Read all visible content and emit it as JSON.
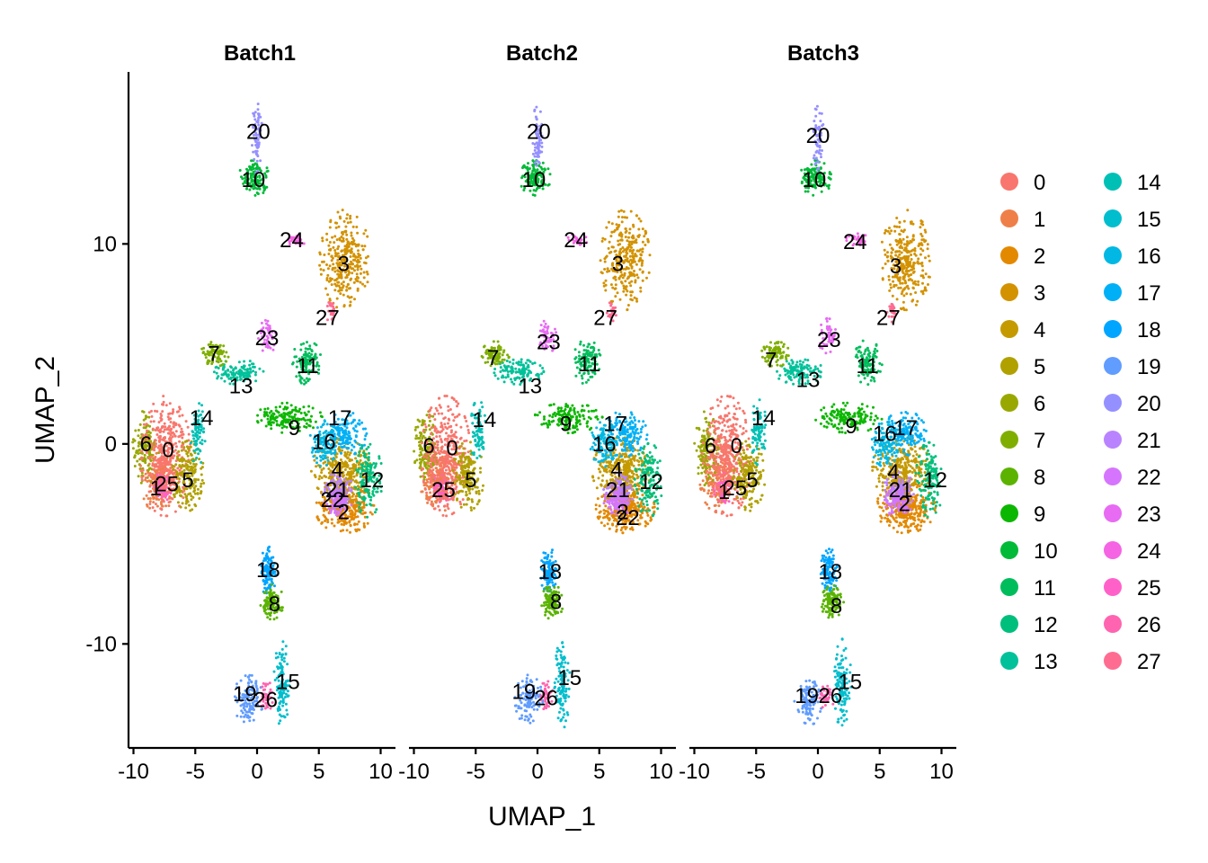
{
  "chart_data": {
    "type": "scatter",
    "facets": [
      "Batch1",
      "Batch2",
      "Batch3"
    ],
    "xlabel": "UMAP_1",
    "ylabel": "UMAP_2",
    "xlim": [
      -10.4,
      11.2
    ],
    "ylim": [
      -15.2,
      18.6
    ],
    "xticks": [
      -10,
      -5,
      0,
      5,
      10
    ],
    "xtick_labels": [
      "-10",
      "-5",
      "0",
      "5",
      "10"
    ],
    "yticks": [
      -10,
      0,
      10
    ],
    "ytick_labels": [
      "-10",
      "0",
      "10"
    ],
    "legend_position": "right",
    "legend_columns": 2,
    "clusters": [
      {
        "name": "0",
        "color": "#F8766D"
      },
      {
        "name": "1",
        "color": "#EF7F49"
      },
      {
        "name": "2",
        "color": "#E38900"
      },
      {
        "name": "3",
        "color": "#D39200"
      },
      {
        "name": "4",
        "color": "#C49A00"
      },
      {
        "name": "5",
        "color": "#B0A100"
      },
      {
        "name": "6",
        "color": "#99A800"
      },
      {
        "name": "7",
        "color": "#7FAE00"
      },
      {
        "name": "8",
        "color": "#5BB300"
      },
      {
        "name": "9",
        "color": "#0CB702"
      },
      {
        "name": "10",
        "color": "#00BA38"
      },
      {
        "name": "11",
        "color": "#00BD5C"
      },
      {
        "name": "12",
        "color": "#00BF7D"
      },
      {
        "name": "13",
        "color": "#00C19A"
      },
      {
        "name": "14",
        "color": "#00C0B5"
      },
      {
        "name": "15",
        "color": "#00BECD"
      },
      {
        "name": "16",
        "color": "#00B8E3"
      },
      {
        "name": "17",
        "color": "#00B0F6"
      },
      {
        "name": "18",
        "color": "#00A5FF"
      },
      {
        "name": "19",
        "color": "#619CFF"
      },
      {
        "name": "20",
        "color": "#9590FF"
      },
      {
        "name": "21",
        "color": "#B983FF"
      },
      {
        "name": "22",
        "color": "#D575FE"
      },
      {
        "name": "23",
        "color": "#E76BF3"
      },
      {
        "name": "24",
        "color": "#F564E3"
      },
      {
        "name": "25",
        "color": "#FF61C9"
      },
      {
        "name": "26",
        "color": "#FF64B0"
      },
      {
        "name": "27",
        "color": "#FF6C91"
      }
    ],
    "draw_order": [
      "2",
      "4",
      "3",
      "17",
      "16",
      "12",
      "21",
      "22",
      "1",
      "25",
      "6",
      "0",
      "5",
      "14",
      "13",
      "9",
      "7",
      "11",
      "23",
      "24",
      "27",
      "10",
      "20",
      "18",
      "8",
      "15",
      "19",
      "26"
    ],
    "cluster_shapes": {
      "0": [
        {
          "cx": -7.4,
          "cy": -0.6,
          "rx": 1.6,
          "ry": 2.4,
          "n": 380
        }
      ],
      "1": [
        {
          "cx": -8.0,
          "cy": -1.8,
          "rx": 1.2,
          "ry": 1.3,
          "n": 200
        }
      ],
      "25": [
        {
          "cx": -7.6,
          "cy": -2.2,
          "rx": 0.7,
          "ry": 0.6,
          "n": 60
        }
      ],
      "6": [
        {
          "cx": -9.0,
          "cy": -0.2,
          "rx": 0.8,
          "ry": 1.5,
          "n": 140
        }
      ],
      "5": [
        {
          "cx": -5.6,
          "cy": -1.6,
          "rx": 1.0,
          "ry": 1.4,
          "n": 180
        }
      ],
      "14": [
        {
          "cx": -4.8,
          "cy": 0.6,
          "rx": 0.5,
          "ry": 1.3,
          "n": 80
        }
      ],
      "7": [
        {
          "cx": -3.4,
          "cy": 4.5,
          "rx": 0.9,
          "ry": 0.5,
          "n": 90
        }
      ],
      "13": [
        {
          "cx": -1.5,
          "cy": 3.6,
          "rx": 1.6,
          "ry": 0.5,
          "n": 120
        }
      ],
      "9": [
        {
          "cx": 2.5,
          "cy": 1.3,
          "rx": 2.2,
          "ry": 0.6,
          "n": 150
        }
      ],
      "16": [
        {
          "cx": 5.4,
          "cy": 0.0,
          "rx": 0.9,
          "ry": 0.9,
          "n": 110
        }
      ],
      "17": [
        {
          "cx": 7.0,
          "cy": 0.5,
          "rx": 1.5,
          "ry": 0.9,
          "n": 160
        }
      ],
      "4": [
        {
          "cx": 6.8,
          "cy": -1.3,
          "rx": 1.9,
          "ry": 1.3,
          "n": 320
        }
      ],
      "21": [
        {
          "cx": 6.6,
          "cy": -2.3,
          "rx": 1.0,
          "ry": 0.7,
          "n": 90
        }
      ],
      "22": [
        {
          "cx": 6.5,
          "cy": -2.9,
          "rx": 0.9,
          "ry": 0.6,
          "n": 80
        }
      ],
      "2": [
        {
          "cx": 7.1,
          "cy": -3.2,
          "rx": 1.9,
          "ry": 1.0,
          "n": 300
        }
      ],
      "12": [
        {
          "cx": 9.0,
          "cy": -1.8,
          "rx": 0.9,
          "ry": 1.5,
          "n": 140
        }
      ],
      "3": [
        {
          "cx": 7.1,
          "cy": 9.2,
          "rx": 1.6,
          "ry": 2.0,
          "n": 300
        }
      ],
      "24": [
        {
          "cx": 3.2,
          "cy": 10.2,
          "rx": 0.7,
          "ry": 0.25,
          "n": 30
        }
      ],
      "27": [
        {
          "cx": 6.0,
          "cy": 6.6,
          "rx": 0.3,
          "ry": 0.4,
          "n": 25
        }
      ],
      "23": [
        {
          "cx": 0.8,
          "cy": 5.4,
          "rx": 0.6,
          "ry": 0.7,
          "n": 50
        }
      ],
      "11": [
        {
          "cx": 4.0,
          "cy": 4.1,
          "rx": 0.9,
          "ry": 0.9,
          "n": 110
        }
      ],
      "10": [
        {
          "cx": -0.2,
          "cy": 13.3,
          "rx": 1.0,
          "ry": 0.7,
          "n": 130
        }
      ],
      "20": [
        {
          "cx": 0.0,
          "cy": 15.3,
          "rx": 0.3,
          "ry": 1.4,
          "n": 70
        }
      ],
      "18": [
        {
          "cx": 0.9,
          "cy": -6.4,
          "rx": 0.5,
          "ry": 1.0,
          "n": 110
        }
      ],
      "8": [
        {
          "cx": 1.2,
          "cy": -7.9,
          "rx": 0.7,
          "ry": 0.7,
          "n": 110
        }
      ],
      "15": [
        {
          "cx": 2.0,
          "cy": -12.0,
          "rx": 0.5,
          "ry": 1.8,
          "n": 120
        }
      ],
      "19": [
        {
          "cx": -0.7,
          "cy": -12.8,
          "rx": 0.9,
          "ry": 1.0,
          "n": 110
        }
      ],
      "26": [
        {
          "cx": 0.7,
          "cy": -12.6,
          "rx": 0.5,
          "ry": 0.6,
          "n": 40
        }
      ]
    },
    "cluster_labels": [
      [
        {
          "text": "20",
          "x": 0.1,
          "y": 15.6
        },
        {
          "text": "10",
          "x": -0.3,
          "y": 13.2
        },
        {
          "text": "24",
          "x": 2.8,
          "y": 10.2
        },
        {
          "text": "3",
          "x": 7.0,
          "y": 9.0
        },
        {
          "text": "27",
          "x": 5.7,
          "y": 6.3
        },
        {
          "text": "23",
          "x": 0.8,
          "y": 5.3
        },
        {
          "text": "7",
          "x": -3.5,
          "y": 4.5
        },
        {
          "text": "11",
          "x": 4.1,
          "y": 3.9
        },
        {
          "text": "13",
          "x": -1.3,
          "y": 2.9
        },
        {
          "text": "14",
          "x": -4.5,
          "y": 1.3
        },
        {
          "text": "9",
          "x": 3.0,
          "y": 0.8
        },
        {
          "text": "17",
          "x": 6.7,
          "y": 1.3
        },
        {
          "text": "6",
          "x": -9.0,
          "y": 0.0
        },
        {
          "text": "0",
          "x": -7.2,
          "y": -0.3
        },
        {
          "text": "16",
          "x": 5.4,
          "y": 0.1
        },
        {
          "text": "4",
          "x": 6.5,
          "y": -1.3
        },
        {
          "text": "12",
          "x": 9.3,
          "y": -1.8
        },
        {
          "text": "5",
          "x": -5.6,
          "y": -1.8
        },
        {
          "text": "25",
          "x": -7.3,
          "y": -2.0
        },
        {
          "text": "1",
          "x": -8.2,
          "y": -2.2
        },
        {
          "text": "21",
          "x": 6.5,
          "y": -2.3
        },
        {
          "text": "22",
          "x": 6.1,
          "y": -2.8
        },
        {
          "text": "2",
          "x": 7.0,
          "y": -3.4
        },
        {
          "text": "18",
          "x": 0.9,
          "y": -6.3
        },
        {
          "text": "8",
          "x": 1.4,
          "y": -8.0
        },
        {
          "text": "15",
          "x": 2.5,
          "y": -11.9
        },
        {
          "text": "19",
          "x": -1.0,
          "y": -12.5
        },
        {
          "text": "26",
          "x": 0.7,
          "y": -12.8
        }
      ],
      [
        {
          "text": "20",
          "x": 0.1,
          "y": 15.6
        },
        {
          "text": "10",
          "x": -0.3,
          "y": 13.2
        },
        {
          "text": "24",
          "x": 3.1,
          "y": 10.2
        },
        {
          "text": "3",
          "x": 6.5,
          "y": 9.0
        },
        {
          "text": "27",
          "x": 5.5,
          "y": 6.3
        },
        {
          "text": "23",
          "x": 0.9,
          "y": 5.1
        },
        {
          "text": "7",
          "x": -3.6,
          "y": 4.3
        },
        {
          "text": "11",
          "x": 4.2,
          "y": 4.0
        },
        {
          "text": "13",
          "x": -0.6,
          "y": 2.9
        },
        {
          "text": "14",
          "x": -4.3,
          "y": 1.2
        },
        {
          "text": "9",
          "x": 2.3,
          "y": 1.0
        },
        {
          "text": "17",
          "x": 6.3,
          "y": 1.0
        },
        {
          "text": "6",
          "x": -8.8,
          "y": -0.1
        },
        {
          "text": "0",
          "x": -6.9,
          "y": -0.2
        },
        {
          "text": "16",
          "x": 5.4,
          "y": 0.0
        },
        {
          "text": "4",
          "x": 6.4,
          "y": -1.3
        },
        {
          "text": "12",
          "x": 9.2,
          "y": -1.9
        },
        {
          "text": "5",
          "x": -5.4,
          "y": -1.8
        },
        {
          "text": "25",
          "x": -7.6,
          "y": -2.3
        },
        {
          "text": "21",
          "x": 6.5,
          "y": -2.3
        },
        {
          "text": "2",
          "x": 6.9,
          "y": -3.4
        },
        {
          "text": "22",
          "x": 7.3,
          "y": -3.7
        },
        {
          "text": "18",
          "x": 1.0,
          "y": -6.4
        },
        {
          "text": "8",
          "x": 1.5,
          "y": -7.9
        },
        {
          "text": "15",
          "x": 2.6,
          "y": -11.7
        },
        {
          "text": "19",
          "x": -1.1,
          "y": -12.4
        },
        {
          "text": "26",
          "x": 0.7,
          "y": -12.7
        }
      ],
      [
        {
          "text": "20",
          "x": 0.0,
          "y": 15.4
        },
        {
          "text": "10",
          "x": -0.3,
          "y": 13.2
        },
        {
          "text": "24",
          "x": 3.0,
          "y": 10.1
        },
        {
          "text": "3",
          "x": 6.3,
          "y": 8.9
        },
        {
          "text": "27",
          "x": 5.7,
          "y": 6.3
        },
        {
          "text": "23",
          "x": 0.9,
          "y": 5.2
        },
        {
          "text": "7",
          "x": -3.8,
          "y": 4.2
        },
        {
          "text": "11",
          "x": 4.0,
          "y": 3.9
        },
        {
          "text": "13",
          "x": -0.8,
          "y": 3.2
        },
        {
          "text": "14",
          "x": -4.4,
          "y": 1.3
        },
        {
          "text": "9",
          "x": 2.7,
          "y": 0.9
        },
        {
          "text": "17",
          "x": 7.1,
          "y": 0.8
        },
        {
          "text": "16",
          "x": 5.4,
          "y": 0.5
        },
        {
          "text": "6",
          "x": -8.7,
          "y": -0.1
        },
        {
          "text": "0",
          "x": -6.6,
          "y": -0.1
        },
        {
          "text": "4",
          "x": 6.1,
          "y": -1.4
        },
        {
          "text": "12",
          "x": 9.5,
          "y": -1.8
        },
        {
          "text": "5",
          "x": -5.3,
          "y": -1.8
        },
        {
          "text": "25",
          "x": -6.7,
          "y": -2.2
        },
        {
          "text": "1",
          "x": -7.6,
          "y": -2.4
        },
        {
          "text": "21",
          "x": 6.7,
          "y": -2.3
        },
        {
          "text": "2",
          "x": 7.0,
          "y": -3.0
        },
        {
          "text": "18",
          "x": 1.0,
          "y": -6.4
        },
        {
          "text": "8",
          "x": 1.5,
          "y": -8.1
        },
        {
          "text": "15",
          "x": 2.6,
          "y": -11.9
        },
        {
          "text": "19",
          "x": -0.9,
          "y": -12.6
        },
        {
          "text": "26",
          "x": 1.0,
          "y": -12.6
        }
      ]
    ]
  }
}
